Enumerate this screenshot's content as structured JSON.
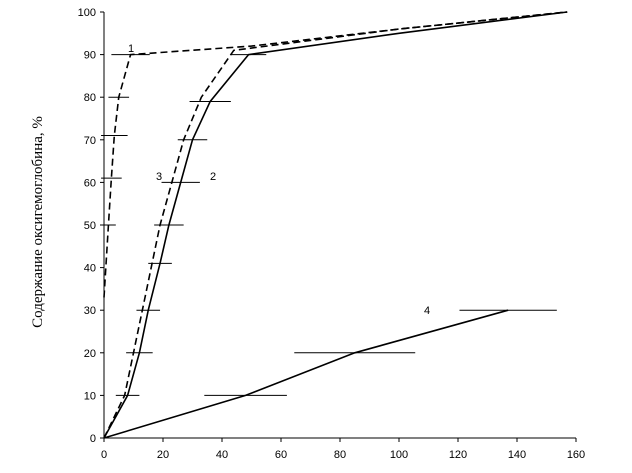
{
  "chart_data": {
    "type": "line",
    "ylabel": "Содержание оксигемоглобина, %",
    "xlim": [
      0,
      160
    ],
    "xticks": [
      0,
      20,
      40,
      60,
      80,
      100,
      120,
      140,
      160
    ],
    "ylim": [
      0,
      100
    ],
    "yticks": [
      0,
      10,
      20,
      30,
      40,
      50,
      60,
      70,
      80,
      90,
      100
    ],
    "series": [
      {
        "name": "1",
        "color": "#000000",
        "dash": true,
        "x": [
          0,
          1.5,
          2.5,
          3.5,
          5,
          9,
          50,
          100,
          157
        ],
        "values": [
          33,
          50,
          61,
          71,
          80,
          90,
          92,
          96,
          100
        ],
        "xerr": [
          null,
          2.5,
          3.5,
          4.5,
          3.5,
          6.5,
          null,
          null,
          null
        ]
      },
      {
        "name": "2",
        "color": "#000000",
        "dash": false,
        "x": [
          0,
          8,
          12,
          15,
          19,
          22,
          26,
          30,
          36,
          49,
          100,
          157
        ],
        "values": [
          0,
          10,
          20,
          30,
          41,
          50,
          60,
          70,
          79,
          90,
          95,
          100
        ],
        "xerr": [
          null,
          4,
          4.5,
          4,
          4,
          5,
          6.5,
          5,
          7,
          6,
          null,
          null
        ]
      },
      {
        "name": "3",
        "color": "#000000",
        "dash": true,
        "x": [
          0,
          7,
          10,
          13,
          16,
          19,
          23,
          27,
          33,
          44,
          100,
          157
        ],
        "values": [
          0,
          10,
          20,
          30,
          40,
          50,
          60,
          70,
          80,
          91,
          96,
          100
        ],
        "xerr": [
          null,
          null,
          null,
          null,
          null,
          null,
          null,
          null,
          null,
          null,
          null,
          null
        ]
      },
      {
        "name": "4",
        "color": "#000000",
        "dash": false,
        "x": [
          0,
          48,
          85,
          137
        ],
        "values": [
          0,
          10,
          20,
          30
        ],
        "xerr": [
          null,
          14,
          20.5,
          16.5
        ]
      }
    ]
  }
}
